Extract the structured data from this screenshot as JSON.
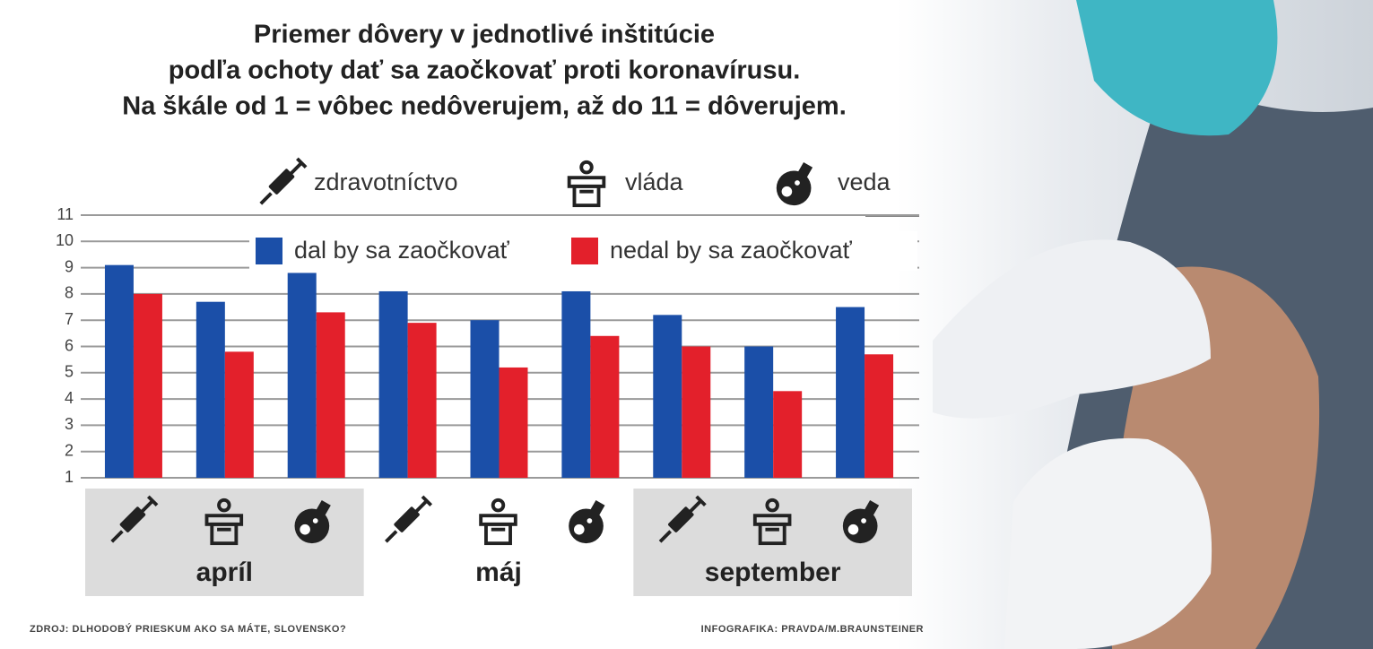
{
  "chart_data": {
    "type": "bar",
    "title_lines": [
      "Priemer dôvery v jednotlivé inštitúcie",
      "podľa ochoty dať sa zaočkovať proti koronavírusu.",
      "Na škále od 1  = vôbec nedôverujem, až do 11 = dôverujem."
    ],
    "icon_legend": [
      "zdravotníctvo",
      "vláda",
      "veda"
    ],
    "categories": [
      null,
      null,
      null,
      null,
      null,
      null,
      null,
      null,
      null
    ],
    "groups": [
      "apríl",
      "máj",
      "september"
    ],
    "series": [
      {
        "name": "dal by sa zaočkovať",
        "color": "#1b4fa8",
        "values": [
          9.1,
          7.7,
          8.8,
          8.1,
          7.0,
          8.1,
          7.2,
          6.0,
          7.5
        ]
      },
      {
        "name": "nedal by sa zaočkovať",
        "color": "#e3202b",
        "values": [
          8.0,
          5.8,
          7.3,
          6.9,
          5.2,
          6.4,
          6.0,
          4.3,
          5.7
        ]
      }
    ],
    "ylim": [
      1,
      11
    ],
    "yticks": [
      1,
      2,
      3,
      4,
      5,
      6,
      7,
      8,
      9,
      10,
      11
    ],
    "grid": true,
    "source": "ZDROJ: DLHODOBÝ PRIESKUM AKO SA MÁTE, SLOVENSKO?",
    "credit": "INFOGRAFIKA: PRAVDA/M.BRAUNSTEINER"
  }
}
